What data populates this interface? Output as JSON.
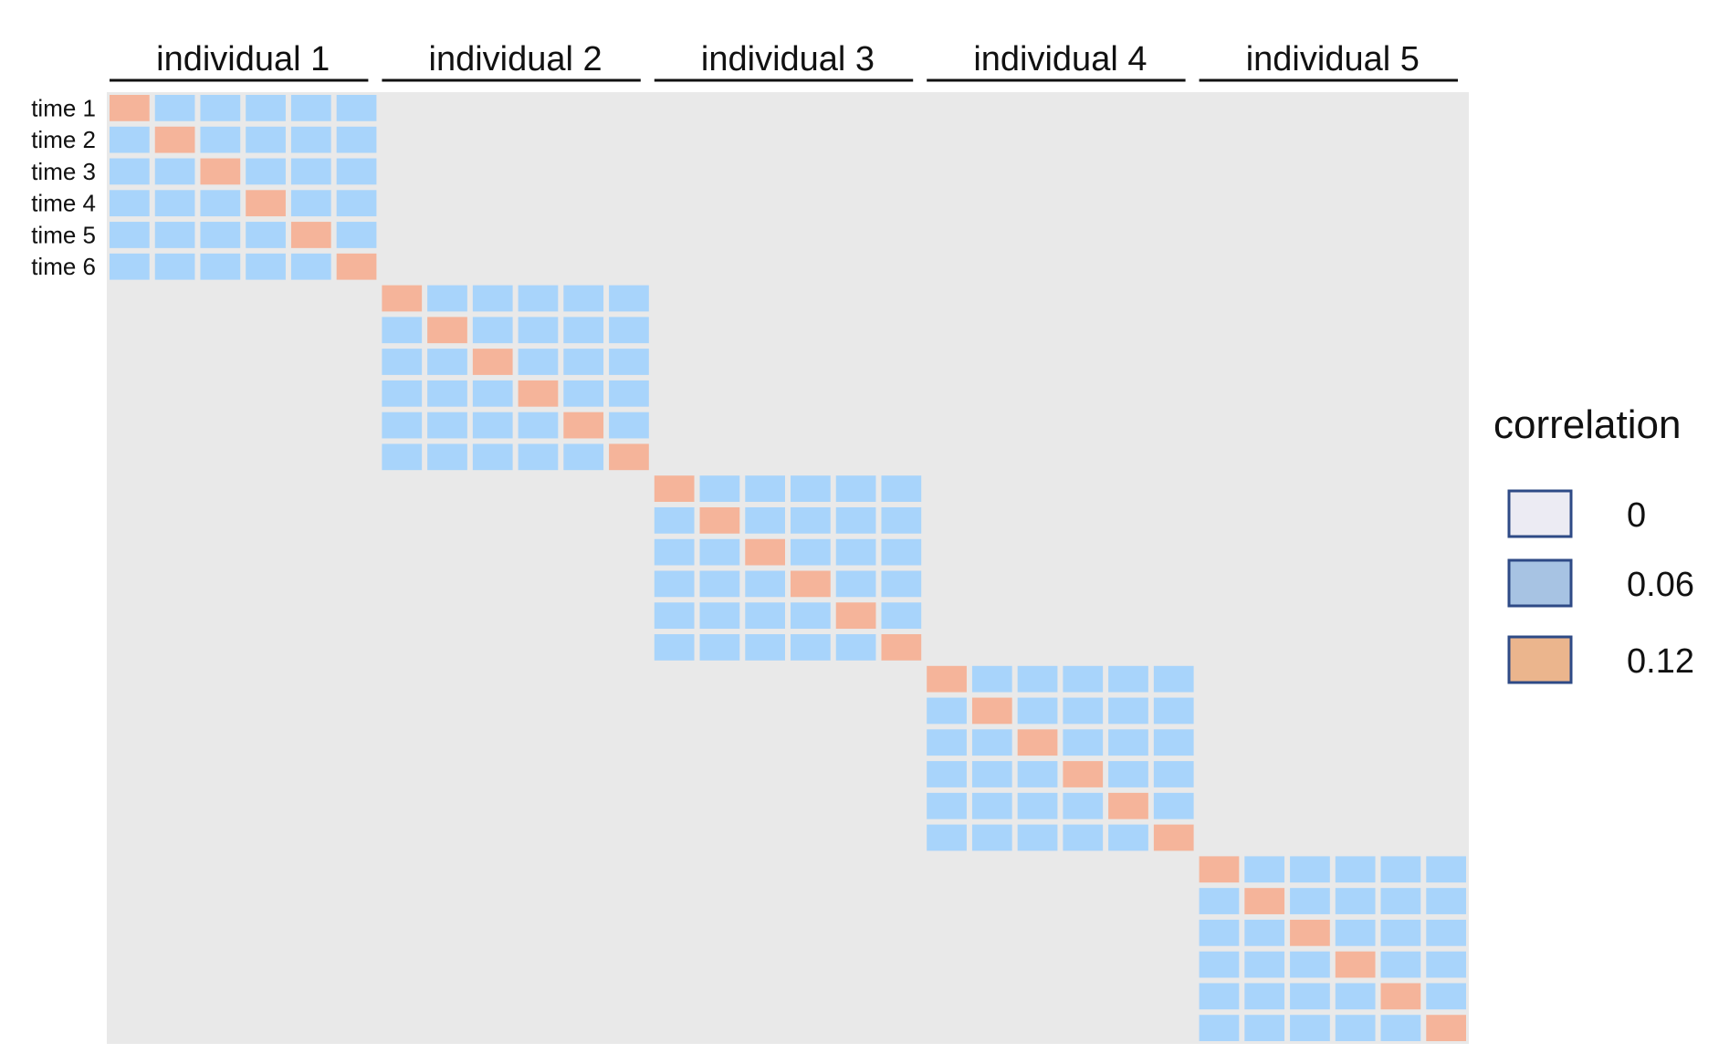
{
  "chart_data": {
    "type": "heatmap",
    "title": "",
    "column_groups": [
      "individual 1",
      "individual 2",
      "individual 3",
      "individual 4",
      "individual 5"
    ],
    "row_labels": [
      "time 1",
      "time 2",
      "time 3",
      "time 4",
      "time 5",
      "time 6"
    ],
    "times_per_individual": 6,
    "within_individual_off_diagonal": 0.06,
    "diagonal": 0.12,
    "between_individuals": 0,
    "colors": {
      "0": "#e9e9e9",
      "0.06": "#a8d4fb",
      "0.12": "#f5b49a"
    },
    "legend": {
      "title": "correlation",
      "position": "right",
      "entries": [
        {
          "label": "0",
          "value": 0,
          "swatch_color": "#ecebf3"
        },
        {
          "label": "0.06",
          "value": 0.06,
          "swatch_color": "#a7c3e3"
        },
        {
          "label": "0.12",
          "value": 0.12,
          "swatch_color": "#ebb58d"
        }
      ],
      "swatch_border": "#2e4a86"
    }
  }
}
